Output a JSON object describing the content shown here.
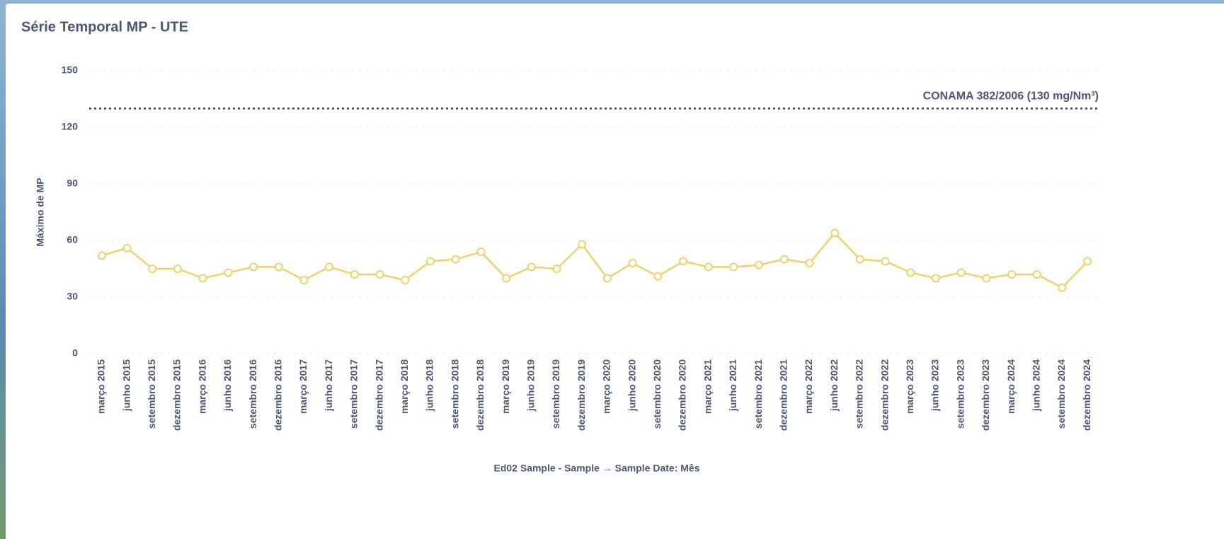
{
  "chart_data": {
    "type": "line",
    "title": "Série Temporal MP - UTE",
    "x_label": "Ed02 Sample - Sample → Sample Date: Mês",
    "y_label": "Máximo de MP",
    "categories": [
      "março 2015",
      "junho 2015",
      "setembro 2015",
      "dezembro 2015",
      "março 2016",
      "junho 2016",
      "setembro 2016",
      "dezembro 2016",
      "março 2017",
      "junho 2017",
      "setembro 2017",
      "dezembro 2017",
      "março 2018",
      "junho 2018",
      "setembro 2018",
      "dezembro 2018",
      "março 2019",
      "junho 2019",
      "setembro 2019",
      "dezembro 2019",
      "março 2020",
      "junho 2020",
      "setembro 2020",
      "dezembro 2020",
      "março 2021",
      "junho 2021",
      "setembro 2021",
      "dezembro 2021",
      "março 2022",
      "junho 2022",
      "setembro 2022",
      "dezembro 2022",
      "março 2023",
      "junho 2023",
      "setembro 2023",
      "dezembro 2023",
      "março 2024",
      "junho 2024",
      "setembro 2024",
      "dezembro 2024"
    ],
    "series": [
      {
        "name": "Máximo de MP",
        "color": "#f2d06b",
        "values": [
          52,
          56,
          45,
          45,
          40,
          43,
          46,
          46,
          39,
          46,
          42,
          42,
          39,
          49,
          50,
          54,
          40,
          46,
          45,
          58,
          40,
          48,
          41,
          49,
          46,
          46,
          47,
          50,
          48,
          64,
          50,
          49,
          43,
          40,
          43,
          40,
          42,
          42,
          35,
          49
        ]
      }
    ],
    "ylim": [
      0,
      150
    ],
    "yticks": [
      0,
      30,
      60,
      90,
      120,
      150
    ],
    "grid": true,
    "reference_line": {
      "value": 130,
      "label": "CONAMA 382/2006 (130 mg/Nm³)"
    }
  }
}
